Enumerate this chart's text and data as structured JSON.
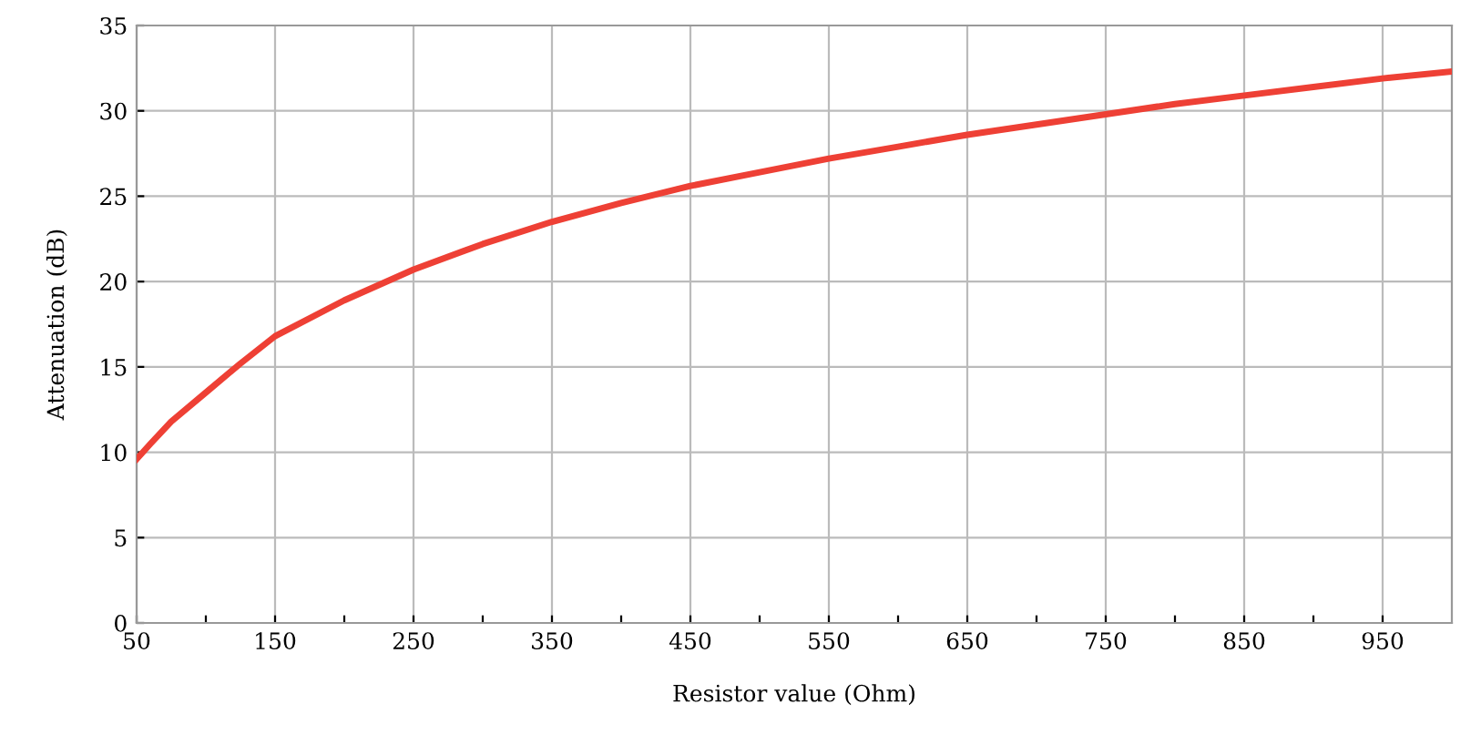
{
  "chart_data": {
    "type": "line",
    "xlabel": "Resistor value (Ohm)",
    "ylabel": "Attenuation (dB)",
    "x": [
      50,
      60,
      75,
      100,
      125,
      150,
      200,
      250,
      300,
      350,
      400,
      450,
      500,
      550,
      600,
      650,
      700,
      750,
      800,
      850,
      900,
      950,
      1000
    ],
    "series": [
      {
        "color": "#ee4035",
        "values": [
          9.6,
          10.5,
          11.8,
          13.5,
          15.2,
          16.8,
          18.9,
          20.7,
          22.2,
          23.5,
          24.6,
          25.6,
          26.4,
          27.2,
          27.9,
          28.6,
          29.2,
          29.8,
          30.4,
          30.9,
          31.4,
          31.9,
          32.3
        ]
      }
    ],
    "xlim": [
      50,
      1000
    ],
    "ylim": [
      0,
      35
    ],
    "xticks": [
      50,
      {
        "value": 100,
        "label": null
      },
      150,
      {
        "value": 200,
        "label": null
      },
      250,
      {
        "value": 300,
        "label": null
      },
      350,
      {
        "value": 400,
        "label": null
      },
      450,
      {
        "value": 500,
        "label": null
      },
      550,
      {
        "value": 600,
        "label": null
      },
      650,
      {
        "value": 700,
        "label": null
      },
      750,
      {
        "value": 800,
        "label": null
      },
      850,
      {
        "value": 900,
        "label": null
      },
      950
    ],
    "yticks": [
      0,
      5,
      10,
      15,
      20,
      25,
      30,
      35
    ],
    "grid": true,
    "legend": false,
    "marker": "none",
    "line_style": "solid"
  }
}
